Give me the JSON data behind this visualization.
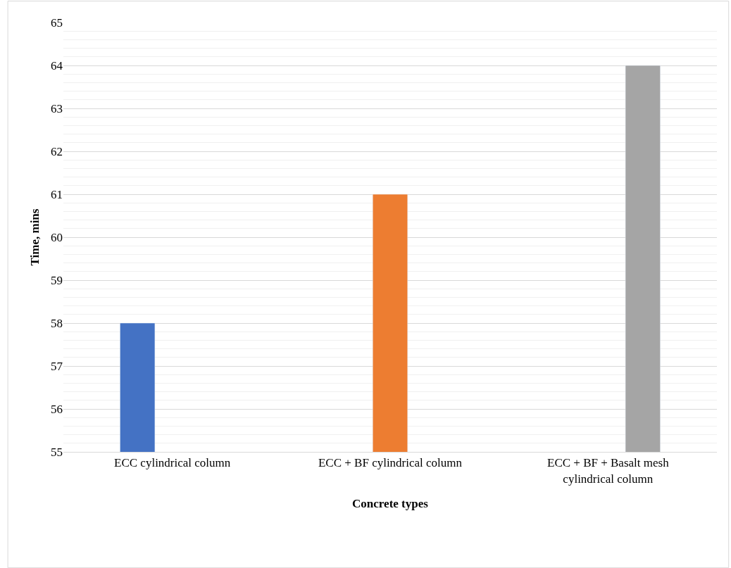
{
  "chart_data": {
    "type": "bar",
    "xlabel": "Concrete types",
    "ylabel": "Time, mins",
    "categories": [
      "ECC cylindrical column",
      "ECC + BF cylindrical column",
      "ECC + BF + Basalt mesh cylindrical column"
    ],
    "series": [
      {
        "color": "#4472c4",
        "values": [
          58,
          null,
          null
        ]
      },
      {
        "color": "#ed7d31",
        "values": [
          null,
          61,
          null
        ]
      },
      {
        "color": "#a5a5a5",
        "values": [
          null,
          null,
          64
        ]
      }
    ],
    "ylim": [
      55,
      65
    ],
    "yticks": [
      55,
      56,
      57,
      58,
      59,
      60,
      61,
      62,
      63,
      64,
      65
    ],
    "grid": "y"
  }
}
